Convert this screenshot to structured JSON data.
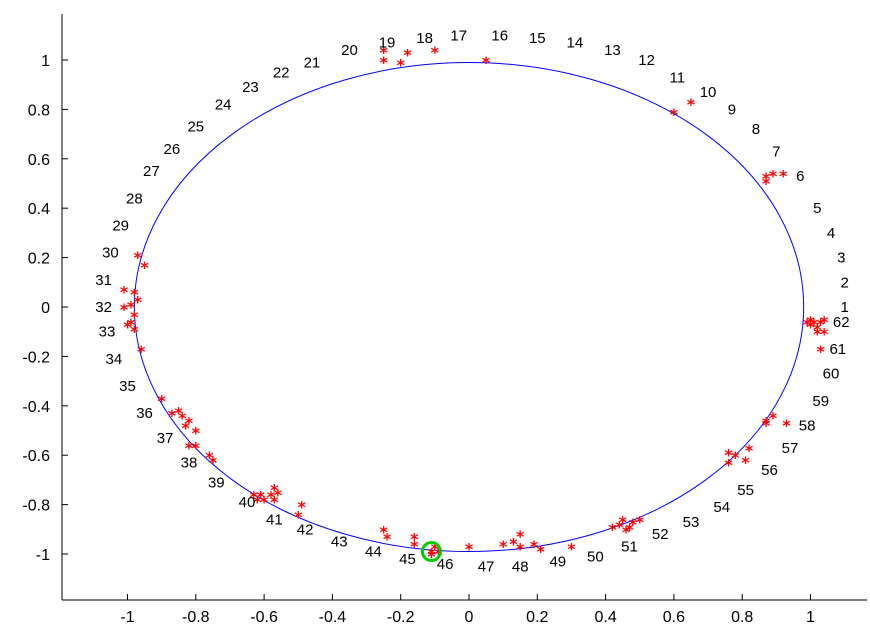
{
  "chart_data": {
    "type": "scatter",
    "xlim": [
      -1.1,
      1.1
    ],
    "ylim": [
      -1.1,
      1.15
    ],
    "xticks": [
      -1,
      -0.8,
      -0.6,
      -0.4,
      -0.2,
      0,
      0.2,
      0.4,
      0.6,
      0.8,
      1
    ],
    "xtick_labels": [
      "-1",
      "-0.8",
      "-0.6",
      "-0.4",
      "-0.2",
      "0",
      "0.2",
      "0.4",
      "0.6",
      "0.8",
      "1"
    ],
    "yticks": [
      -1,
      -0.8,
      -0.6,
      -0.4,
      -0.2,
      0,
      0.2,
      0.4,
      0.6,
      0.8,
      1
    ],
    "ytick_labels": [
      "-1",
      "-0.8",
      "-0.6",
      "-0.4",
      "-0.2",
      "0",
      "0.2",
      "0.4",
      "0.6",
      "0.8",
      "1"
    ],
    "grid": false,
    "ellipse": {
      "rx": 0.98,
      "ry": 0.99,
      "color": "#0000ff"
    },
    "marker_color": "#ff0000",
    "highlight": {
      "x": -0.11,
      "y": -0.99,
      "color": "#00cc00"
    },
    "points": [
      {
        "x": 0.05,
        "y": 1.0
      },
      {
        "x": 0.6,
        "y": 0.79
      },
      {
        "x": 0.65,
        "y": 0.83
      },
      {
        "x": 0.87,
        "y": 0.53
      },
      {
        "x": 0.87,
        "y": 0.51
      },
      {
        "x": 0.89,
        "y": 0.54
      },
      {
        "x": 0.92,
        "y": 0.54
      },
      {
        "x": -0.25,
        "y": 1.04
      },
      {
        "x": -0.25,
        "y": 1.0
      },
      {
        "x": -0.2,
        "y": 0.99
      },
      {
        "x": -0.18,
        "y": 1.03
      },
      {
        "x": -0.1,
        "y": 1.04
      },
      {
        "x": 0.99,
        "y": -0.06
      },
      {
        "x": 1.0,
        "y": -0.07
      },
      {
        "x": 1.01,
        "y": -0.06
      },
      {
        "x": 1.02,
        "y": -0.08
      },
      {
        "x": 1.03,
        "y": -0.06
      },
      {
        "x": 1.04,
        "y": -0.05
      },
      {
        "x": 1.02,
        "y": -0.1
      },
      {
        "x": 1.04,
        "y": -0.1
      },
      {
        "x": 1.03,
        "y": -0.17
      },
      {
        "x": 1.0,
        "y": -0.05
      },
      {
        "x": -0.97,
        "y": 0.21
      },
      {
        "x": -0.95,
        "y": 0.17
      },
      {
        "x": -1.01,
        "y": 0.07
      },
      {
        "x": -0.98,
        "y": 0.06
      },
      {
        "x": -0.97,
        "y": 0.03
      },
      {
        "x": -0.99,
        "y": 0.01
      },
      {
        "x": -1.01,
        "y": 0.0
      },
      {
        "x": -0.98,
        "y": -0.03
      },
      {
        "x": -0.99,
        "y": -0.06
      },
      {
        "x": -1.0,
        "y": -0.07
      },
      {
        "x": -0.98,
        "y": -0.09
      },
      {
        "x": -0.96,
        "y": -0.17
      },
      {
        "x": -0.9,
        "y": -0.37
      },
      {
        "x": -0.87,
        "y": -0.43
      },
      {
        "x": -0.85,
        "y": -0.42
      },
      {
        "x": -0.84,
        "y": -0.44
      },
      {
        "x": -0.83,
        "y": -0.48
      },
      {
        "x": -0.82,
        "y": -0.46
      },
      {
        "x": -0.8,
        "y": -0.5
      },
      {
        "x": -0.82,
        "y": -0.56
      },
      {
        "x": -0.8,
        "y": -0.56
      },
      {
        "x": -0.76,
        "y": -0.6
      },
      {
        "x": -0.75,
        "y": -0.62
      },
      {
        "x": -0.63,
        "y": -0.76
      },
      {
        "x": -0.62,
        "y": -0.78
      },
      {
        "x": -0.61,
        "y": -0.76
      },
      {
        "x": -0.6,
        "y": -0.78
      },
      {
        "x": -0.58,
        "y": -0.76
      },
      {
        "x": -0.57,
        "y": -0.73
      },
      {
        "x": -0.56,
        "y": -0.75
      },
      {
        "x": -0.57,
        "y": -0.78
      },
      {
        "x": -0.49,
        "y": -0.8
      },
      {
        "x": -0.5,
        "y": -0.84
      },
      {
        "x": -0.25,
        "y": -0.9
      },
      {
        "x": -0.24,
        "y": -0.93
      },
      {
        "x": -0.16,
        "y": -0.93
      },
      {
        "x": -0.16,
        "y": -0.96
      },
      {
        "x": -0.1,
        "y": -0.97
      },
      {
        "x": -0.11,
        "y": -0.99
      },
      {
        "x": -0.09,
        "y": -0.99
      },
      {
        "x": -0.11,
        "y": -1.0
      },
      {
        "x": 0.0,
        "y": -0.97
      },
      {
        "x": 0.1,
        "y": -0.96
      },
      {
        "x": 0.13,
        "y": -0.95
      },
      {
        "x": 0.15,
        "y": -0.92
      },
      {
        "x": 0.15,
        "y": -0.97
      },
      {
        "x": 0.19,
        "y": -0.96
      },
      {
        "x": 0.21,
        "y": -0.98
      },
      {
        "x": 0.3,
        "y": -0.97
      },
      {
        "x": 0.42,
        "y": -0.89
      },
      {
        "x": 0.44,
        "y": -0.88
      },
      {
        "x": 0.45,
        "y": -0.86
      },
      {
        "x": 0.46,
        "y": -0.9
      },
      {
        "x": 0.48,
        "y": -0.87
      },
      {
        "x": 0.47,
        "y": -0.89
      },
      {
        "x": 0.5,
        "y": -0.86
      },
      {
        "x": 0.76,
        "y": -0.59
      },
      {
        "x": 0.76,
        "y": -0.63
      },
      {
        "x": 0.78,
        "y": -0.6
      },
      {
        "x": 0.82,
        "y": -0.57
      },
      {
        "x": 0.81,
        "y": -0.62
      },
      {
        "x": 0.87,
        "y": -0.47
      },
      {
        "x": 0.87,
        "y": -0.46
      },
      {
        "x": 0.89,
        "y": -0.44
      },
      {
        "x": 0.93,
        "y": -0.47
      }
    ],
    "annotations": [
      {
        "text": "1",
        "x": 1.1,
        "y": 0.0
      },
      {
        "text": "2",
        "x": 1.1,
        "y": 0.1
      },
      {
        "text": "3",
        "x": 1.09,
        "y": 0.2
      },
      {
        "text": "4",
        "x": 1.06,
        "y": 0.3
      },
      {
        "text": "5",
        "x": 1.02,
        "y": 0.4
      },
      {
        "text": "6",
        "x": 0.97,
        "y": 0.53
      },
      {
        "text": "7",
        "x": 0.9,
        "y": 0.63
      },
      {
        "text": "8",
        "x": 0.84,
        "y": 0.72
      },
      {
        "text": "9",
        "x": 0.77,
        "y": 0.8
      },
      {
        "text": "10",
        "x": 0.7,
        "y": 0.87
      },
      {
        "text": "11",
        "x": 0.61,
        "y": 0.93
      },
      {
        "text": "12",
        "x": 0.52,
        "y": 1.0
      },
      {
        "text": "13",
        "x": 0.42,
        "y": 1.04
      },
      {
        "text": "14",
        "x": 0.31,
        "y": 1.07
      },
      {
        "text": "15",
        "x": 0.2,
        "y": 1.09
      },
      {
        "text": "16",
        "x": 0.09,
        "y": 1.1
      },
      {
        "text": "17",
        "x": -0.03,
        "y": 1.1
      },
      {
        "text": "18",
        "x": -0.13,
        "y": 1.09
      },
      {
        "text": "19",
        "x": -0.24,
        "y": 1.07
      },
      {
        "text": "20",
        "x": -0.35,
        "y": 1.04
      },
      {
        "text": "21",
        "x": -0.46,
        "y": 0.99
      },
      {
        "text": "22",
        "x": -0.55,
        "y": 0.95
      },
      {
        "text": "23",
        "x": -0.64,
        "y": 0.89
      },
      {
        "text": "24",
        "x": -0.72,
        "y": 0.82
      },
      {
        "text": "25",
        "x": -0.8,
        "y": 0.73
      },
      {
        "text": "26",
        "x": -0.87,
        "y": 0.64
      },
      {
        "text": "27",
        "x": -0.93,
        "y": 0.55
      },
      {
        "text": "28",
        "x": -0.98,
        "y": 0.44
      },
      {
        "text": "29",
        "x": -1.02,
        "y": 0.33
      },
      {
        "text": "30",
        "x": -1.05,
        "y": 0.22
      },
      {
        "text": "31",
        "x": -1.07,
        "y": 0.11
      },
      {
        "text": "32",
        "x": -1.07,
        "y": 0.0
      },
      {
        "text": "33",
        "x": -1.06,
        "y": -0.1
      },
      {
        "text": "34",
        "x": -1.04,
        "y": -0.21
      },
      {
        "text": "35",
        "x": -1.0,
        "y": -0.32
      },
      {
        "text": "36",
        "x": -0.95,
        "y": -0.43
      },
      {
        "text": "37",
        "x": -0.89,
        "y": -0.53
      },
      {
        "text": "38",
        "x": -0.82,
        "y": -0.63
      },
      {
        "text": "39",
        "x": -0.74,
        "y": -0.71
      },
      {
        "text": "40",
        "x": -0.65,
        "y": -0.79
      },
      {
        "text": "41",
        "x": -0.57,
        "y": -0.86
      },
      {
        "text": "42",
        "x": -0.48,
        "y": -0.9
      },
      {
        "text": "43",
        "x": -0.38,
        "y": -0.95
      },
      {
        "text": "44",
        "x": -0.28,
        "y": -0.99
      },
      {
        "text": "45",
        "x": -0.18,
        "y": -1.02
      },
      {
        "text": "46",
        "x": -0.07,
        "y": -1.04
      },
      {
        "text": "47",
        "x": 0.05,
        "y": -1.05
      },
      {
        "text": "48",
        "x": 0.15,
        "y": -1.05
      },
      {
        "text": "49",
        "x": 0.26,
        "y": -1.03
      },
      {
        "text": "50",
        "x": 0.37,
        "y": -1.01
      },
      {
        "text": "51",
        "x": 0.47,
        "y": -0.97
      },
      {
        "text": "52",
        "x": 0.56,
        "y": -0.92
      },
      {
        "text": "53",
        "x": 0.65,
        "y": -0.87
      },
      {
        "text": "54",
        "x": 0.74,
        "y": -0.81
      },
      {
        "text": "55",
        "x": 0.81,
        "y": -0.74
      },
      {
        "text": "56",
        "x": 0.88,
        "y": -0.66
      },
      {
        "text": "57",
        "x": 0.94,
        "y": -0.57
      },
      {
        "text": "58",
        "x": 0.99,
        "y": -0.48
      },
      {
        "text": "59",
        "x": 1.03,
        "y": -0.38
      },
      {
        "text": "60",
        "x": 1.06,
        "y": -0.27
      },
      {
        "text": "61",
        "x": 1.08,
        "y": -0.17
      },
      {
        "text": "62",
        "x": 1.09,
        "y": -0.06
      }
    ]
  }
}
